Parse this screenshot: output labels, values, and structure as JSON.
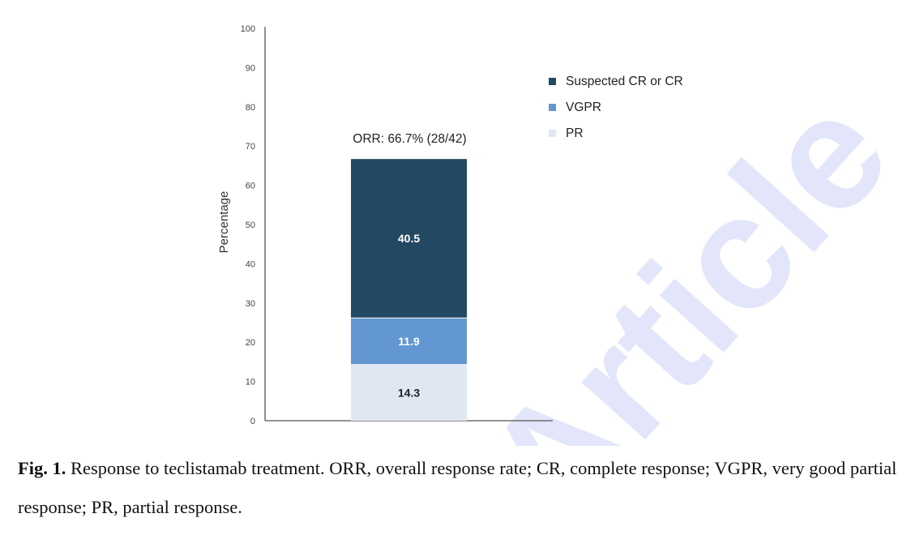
{
  "chart_data": {
    "type": "bar",
    "stacked": true,
    "categories": [
      ""
    ],
    "series": [
      {
        "name": "PR",
        "values": [
          14.3
        ],
        "color": "#dfe7f2",
        "label_color": "#222222"
      },
      {
        "name": "VGPR",
        "values": [
          11.9
        ],
        "color": "#6397d2",
        "label_color": "#ffffff"
      },
      {
        "name": "Suspected CR or CR",
        "values": [
          40.5
        ],
        "color": "#234862",
        "label_color": "#ffffff"
      }
    ],
    "ylabel": "Percentage",
    "xlabel": "",
    "ylim": [
      0,
      100
    ],
    "yticks": [
      0,
      10,
      20,
      30,
      40,
      50,
      60,
      70,
      80,
      90,
      100
    ],
    "annotation": "ORR: 66.7% (28/42)",
    "legend_order": [
      "Suspected CR or CR",
      "VGPR",
      "PR"
    ],
    "legend_position": "right",
    "grid": false
  },
  "watermark": "Article",
  "caption": {
    "label": "Fig. 1.",
    "text": " Response to teclistamab treatment. ORR, overall response rate; CR, complete response; VGPR, very good partial response; PR, partial response."
  }
}
